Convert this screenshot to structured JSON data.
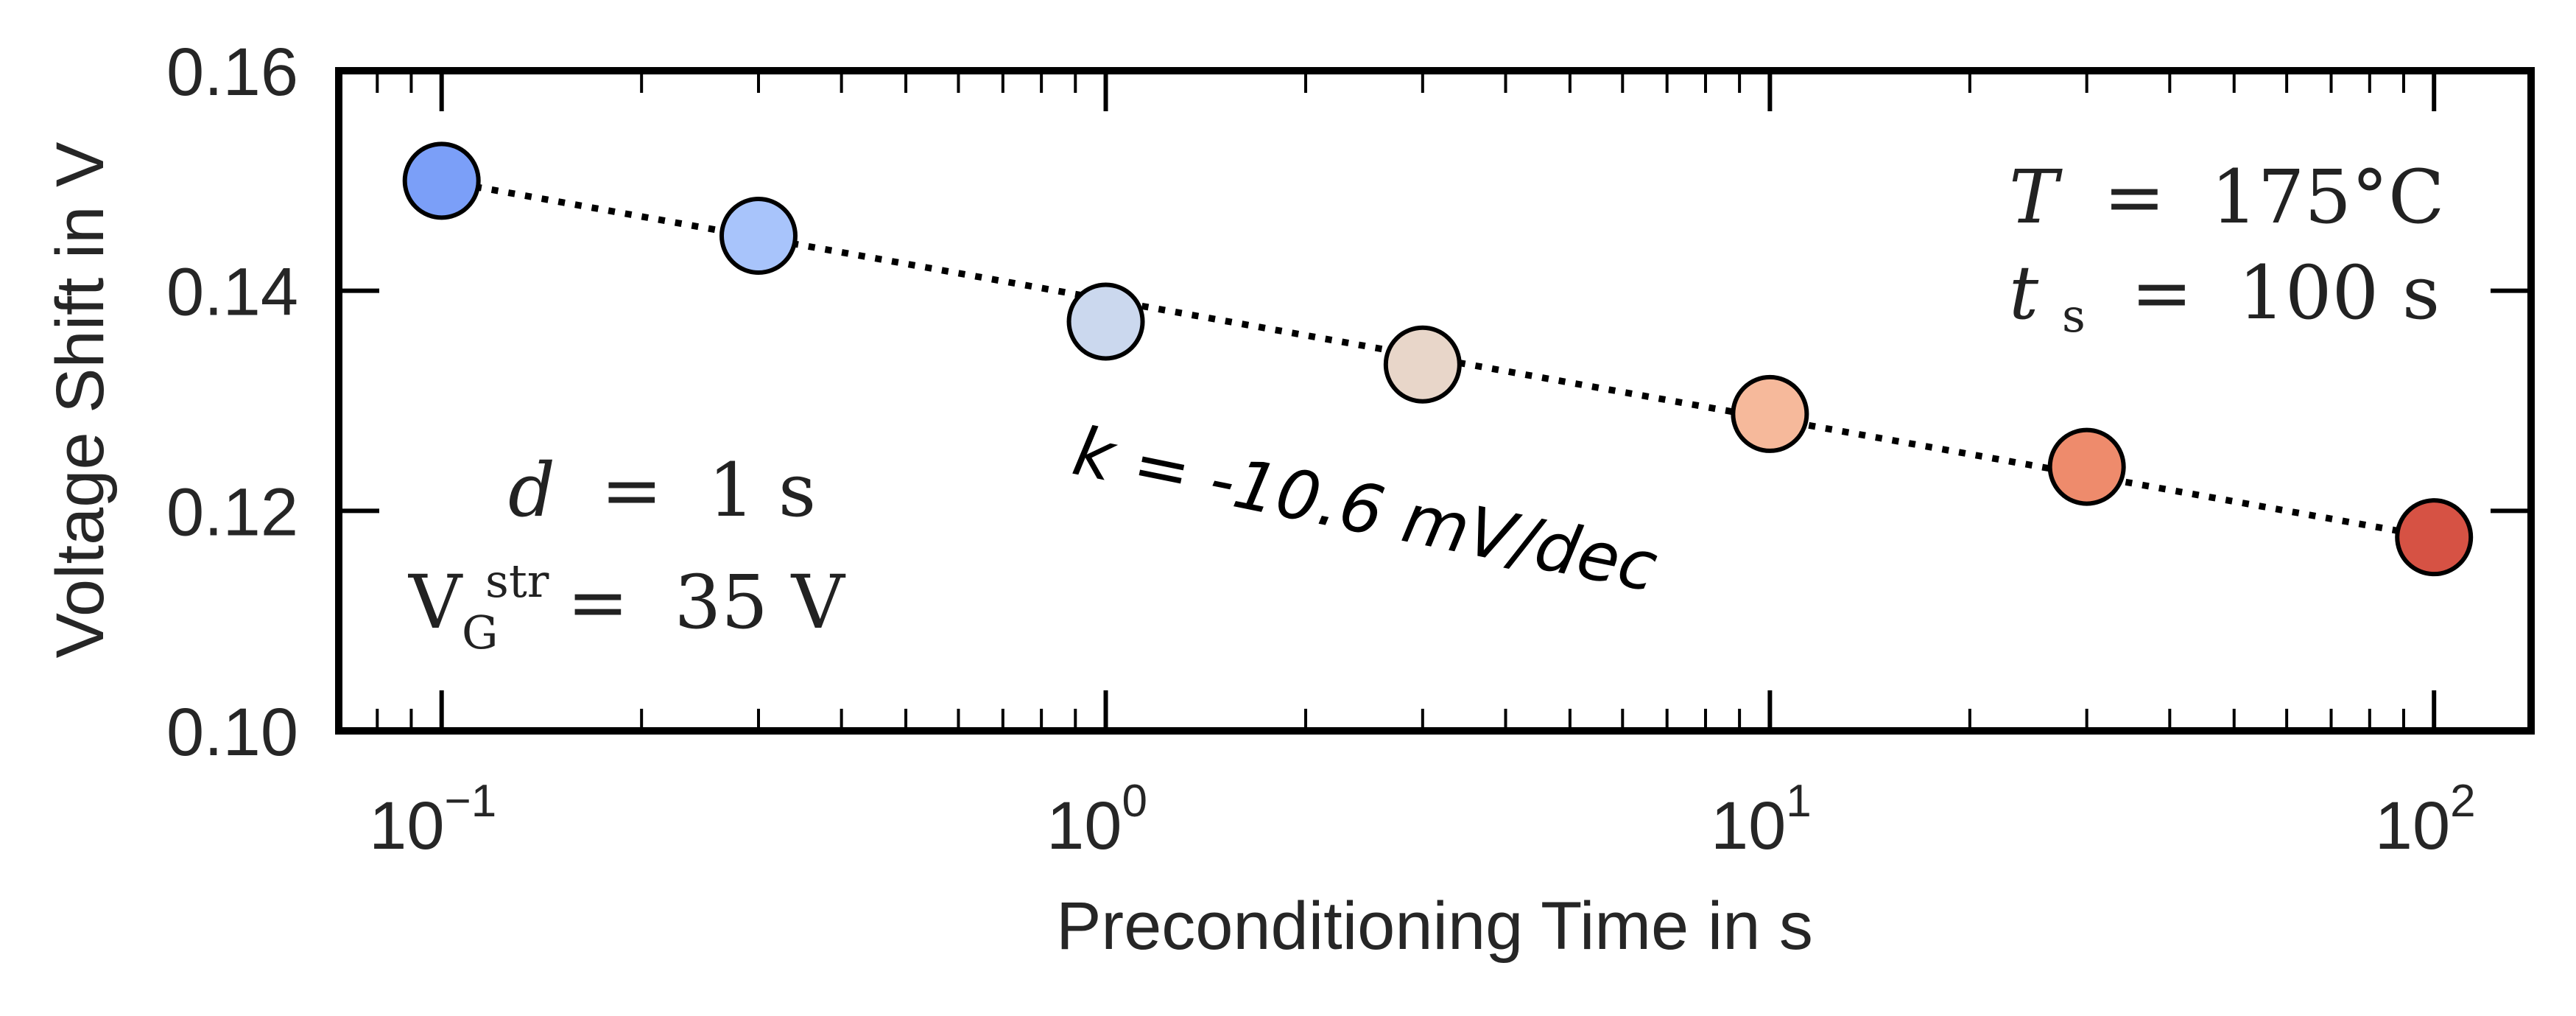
{
  "chart_data": {
    "type": "scatter",
    "x_scale": "log",
    "xlabel": "Preconditioning Time in s",
    "ylabel": "Voltage Shift in V",
    "xlim": [
      0.07,
      140
    ],
    "ylim": [
      0.1,
      0.16
    ],
    "y_ticks": [
      {
        "value": 0.1,
        "label": "0.10"
      },
      {
        "value": 0.12,
        "label": "0.12"
      },
      {
        "value": 0.14,
        "label": "0.14"
      },
      {
        "value": 0.16,
        "label": "0.16"
      }
    ],
    "x_ticks": [
      {
        "value": 0.1,
        "base": "10",
        "exp": "−1"
      },
      {
        "value": 1,
        "base": "10",
        "exp": "0"
      },
      {
        "value": 10,
        "base": "10",
        "exp": "1"
      },
      {
        "value": 100,
        "base": "10",
        "exp": "2"
      }
    ],
    "points": [
      {
        "x": 0.1,
        "y": 0.15,
        "color": "#7b9ff8"
      },
      {
        "x": 0.3,
        "y": 0.145,
        "color": "#a8c4fb"
      },
      {
        "x": 1,
        "y": 0.1372,
        "color": "#cbd8ee"
      },
      {
        "x": 3,
        "y": 0.1333,
        "color": "#e8d6c9"
      },
      {
        "x": 10,
        "y": 0.1288,
        "color": "#f6b99b"
      },
      {
        "x": 30,
        "y": 0.124,
        "color": "#ee8b6c"
      },
      {
        "x": 100,
        "y": 0.1176,
        "color": "#d65244"
      }
    ],
    "fit_line": {
      "x_start": 0.1,
      "y_start": 0.15,
      "x_end": 100,
      "y_end": 0.1176,
      "style": "dotted",
      "color": "#000000"
    },
    "annotations": {
      "slope_text": "k = -10.6 mV/dec",
      "temperature": {
        "lhs": "T",
        "eq": "=",
        "rhs": "175°C"
      },
      "stress_time": {
        "lhs": "t",
        "sub": "s",
        "eq": "=",
        "rhs": "100 s"
      },
      "delay": {
        "lhs": "d",
        "eq": "=",
        "rhs": "1 s"
      },
      "gate_voltage": {
        "lhs": "V",
        "sub": "G",
        "sup": "str",
        "eq": "=",
        "rhs": "35 V"
      }
    },
    "grid": false
  }
}
